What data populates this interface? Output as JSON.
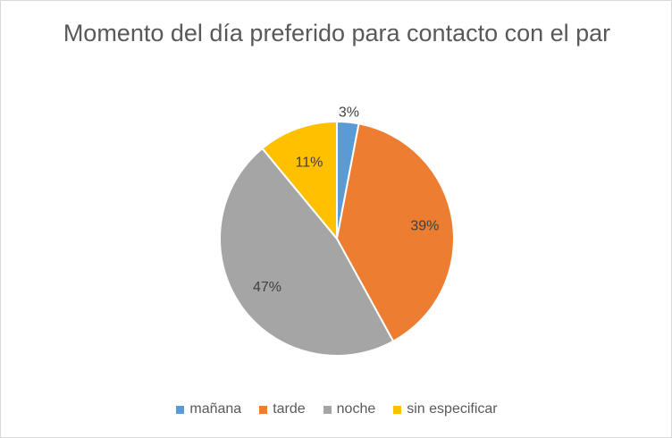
{
  "chart_data": {
    "type": "pie",
    "title": "Momento del día preferido para contacto con el par",
    "categories": [
      "mañana",
      "tarde",
      "noche",
      "sin especificar"
    ],
    "values": [
      3,
      39,
      47,
      11
    ],
    "labels": [
      "3%",
      "39%",
      "47%",
      "11%"
    ],
    "colors": [
      "#5b9bd5",
      "#ed7d31",
      "#a5a5a5",
      "#ffc000"
    ],
    "legend_position": "bottom"
  }
}
